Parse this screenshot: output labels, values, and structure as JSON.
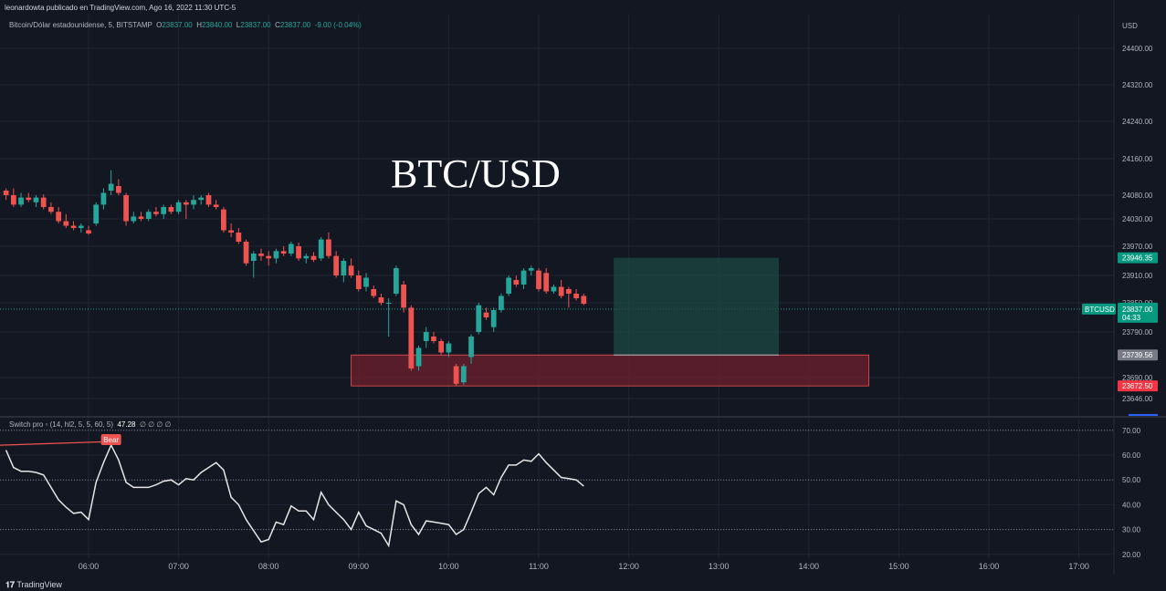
{
  "header": {
    "published_text": "leonardowta publicado en TradingView.com, Ago 16, 2022 11:30 UTC-5"
  },
  "legend": {
    "symbol": "Bitcoin/Dólar estadounidense, 5, BITSTAMP",
    "open_label": "O",
    "open": "23837.00",
    "high_label": "H",
    "high": "23840.00",
    "low_label": "L",
    "low": "23837.00",
    "close_label": "C",
    "close": "23837.00",
    "change": "-9.00 (-0.04%)"
  },
  "overlay_title": "BTC/USD",
  "currency_label": "USD",
  "oscillator": {
    "legend": "Switch pro ▫ (14, hl2, 5, 5, 60, 5)",
    "value": "47.28",
    "extras": "∅ ∅ ∅ ∅",
    "signal_label": "Bear"
  },
  "price_tags": {
    "symbol_tag": "BTCUSD",
    "last_price": "23837.00",
    "countdown": "04:33",
    "target": "23946.35",
    "entry": "23739.56",
    "stop": "23672.50"
  },
  "footer": {
    "brand": "TradingView"
  },
  "colors": {
    "background": "#131722",
    "up": "#26a69a",
    "down": "#ef5350",
    "target_zone": "#1c4a43",
    "stop_zone": "#6a1f2e",
    "oscillator_line": "#e6e6e6"
  },
  "chart_data": [
    {
      "type": "candlestick",
      "title": "Bitcoin/Dólar estadounidense, 5, BITSTAMP",
      "ylabel": "USD",
      "ylim": [
        23620,
        24440
      ],
      "yticks": [
        24400,
        24320,
        24240,
        24160,
        24080,
        24030,
        23970,
        23910,
        23850,
        23790,
        23690,
        23646
      ],
      "xticks": [
        "06:00",
        "07:00",
        "08:00",
        "09:00",
        "10:00",
        "11:00",
        "12:00",
        "13:00",
        "14:00",
        "15:00",
        "16:00",
        "17:00"
      ],
      "x_start_minutes": 300,
      "x_end_minutes": 1050,
      "candle_minutes": 5,
      "first_candle_minutes": 305,
      "candles": [
        {
          "o": 24090,
          "h": 24095,
          "l": 24070,
          "c": 24080
        },
        {
          "o": 24080,
          "h": 24095,
          "l": 24055,
          "c": 24060
        },
        {
          "o": 24060,
          "h": 24085,
          "l": 24055,
          "c": 24075
        },
        {
          "o": 24075,
          "h": 24085,
          "l": 24065,
          "c": 24070
        },
        {
          "o": 24065,
          "h": 24080,
          "l": 24055,
          "c": 24075
        },
        {
          "o": 24075,
          "h": 24082,
          "l": 24050,
          "c": 24055
        },
        {
          "o": 24055,
          "h": 24065,
          "l": 24040,
          "c": 24045
        },
        {
          "o": 24045,
          "h": 24055,
          "l": 24020,
          "c": 24025
        },
        {
          "o": 24025,
          "h": 24040,
          "l": 24010,
          "c": 24015
        },
        {
          "o": 24015,
          "h": 24025,
          "l": 24005,
          "c": 24010
        },
        {
          "o": 24010,
          "h": 24020,
          "l": 24000,
          "c": 24015
        },
        {
          "o": 24005,
          "h": 24015,
          "l": 23995,
          "c": 23998
        },
        {
          "o": 24020,
          "h": 24065,
          "l": 24015,
          "c": 24060
        },
        {
          "o": 24060,
          "h": 24095,
          "l": 24050,
          "c": 24085
        },
        {
          "o": 24090,
          "h": 24135,
          "l": 24080,
          "c": 24105
        },
        {
          "o": 24100,
          "h": 24115,
          "l": 24080,
          "c": 24085
        },
        {
          "o": 24080,
          "h": 24085,
          "l": 24015,
          "c": 24025
        },
        {
          "o": 24025,
          "h": 24045,
          "l": 24020,
          "c": 24035
        },
        {
          "o": 24035,
          "h": 24045,
          "l": 24025,
          "c": 24030
        },
        {
          "o": 24030,
          "h": 24050,
          "l": 24025,
          "c": 24045
        },
        {
          "o": 24045,
          "h": 24055,
          "l": 24035,
          "c": 24040
        },
        {
          "o": 24040,
          "h": 24060,
          "l": 24030,
          "c": 24055
        },
        {
          "o": 24055,
          "h": 24060,
          "l": 24040,
          "c": 24045
        },
        {
          "o": 24045,
          "h": 24070,
          "l": 24040,
          "c": 24065
        },
        {
          "o": 24065,
          "h": 24070,
          "l": 24030,
          "c": 24060
        },
        {
          "o": 24060,
          "h": 24080,
          "l": 24050,
          "c": 24070
        },
        {
          "o": 24070,
          "h": 24080,
          "l": 24060,
          "c": 24075
        },
        {
          "o": 24080,
          "h": 24085,
          "l": 24055,
          "c": 24060
        },
        {
          "o": 24060,
          "h": 24070,
          "l": 24050,
          "c": 24055
        },
        {
          "o": 24050,
          "h": 24055,
          "l": 24000,
          "c": 24005
        },
        {
          "o": 24005,
          "h": 24020,
          "l": 23990,
          "c": 24000
        },
        {
          "o": 24000,
          "h": 24010,
          "l": 23975,
          "c": 23980
        },
        {
          "o": 23980,
          "h": 23985,
          "l": 23930,
          "c": 23935
        },
        {
          "o": 23940,
          "h": 23960,
          "l": 23905,
          "c": 23955
        },
        {
          "o": 23955,
          "h": 23965,
          "l": 23940,
          "c": 23950
        },
        {
          "o": 23950,
          "h": 23960,
          "l": 23930,
          "c": 23945
        },
        {
          "o": 23945,
          "h": 23965,
          "l": 23935,
          "c": 23960
        },
        {
          "o": 23960,
          "h": 23970,
          "l": 23950,
          "c": 23955
        },
        {
          "o": 23955,
          "h": 23980,
          "l": 23950,
          "c": 23975
        },
        {
          "o": 23970,
          "h": 23978,
          "l": 23940,
          "c": 23945
        },
        {
          "o": 23945,
          "h": 23955,
          "l": 23935,
          "c": 23950
        },
        {
          "o": 23950,
          "h": 23958,
          "l": 23938,
          "c": 23942
        },
        {
          "o": 23945,
          "h": 23990,
          "l": 23940,
          "c": 23985
        },
        {
          "o": 23985,
          "h": 24000,
          "l": 23945,
          "c": 23950
        },
        {
          "o": 23950,
          "h": 23960,
          "l": 23905,
          "c": 23910
        },
        {
          "o": 23910,
          "h": 23945,
          "l": 23895,
          "c": 23940
        },
        {
          "o": 23930,
          "h": 23945,
          "l": 23905,
          "c": 23910
        },
        {
          "o": 23910,
          "h": 23920,
          "l": 23875,
          "c": 23880
        },
        {
          "o": 23885,
          "h": 23915,
          "l": 23875,
          "c": 23905
        },
        {
          "o": 23880,
          "h": 23888,
          "l": 23860,
          "c": 23865
        },
        {
          "o": 23862,
          "h": 23870,
          "l": 23845,
          "c": 23850
        },
        {
          "o": 23850,
          "h": 23860,
          "l": 23780,
          "c": 23850
        },
        {
          "o": 23870,
          "h": 23930,
          "l": 23865,
          "c": 23925
        },
        {
          "o": 23890,
          "h": 23898,
          "l": 23830,
          "c": 23840
        },
        {
          "o": 23840,
          "h": 23845,
          "l": 23705,
          "c": 23710
        },
        {
          "o": 23715,
          "h": 23760,
          "l": 23705,
          "c": 23755
        },
        {
          "o": 23770,
          "h": 23800,
          "l": 23755,
          "c": 23790
        },
        {
          "o": 23780,
          "h": 23790,
          "l": 23765,
          "c": 23770
        },
        {
          "o": 23770,
          "h": 23775,
          "l": 23740,
          "c": 23745
        },
        {
          "o": 23745,
          "h": 23770,
          "l": 23735,
          "c": 23765
        },
        {
          "o": 23715,
          "h": 23720,
          "l": 23672,
          "c": 23677
        },
        {
          "o": 23680,
          "h": 23720,
          "l": 23675,
          "c": 23715
        },
        {
          "o": 23735,
          "h": 23785,
          "l": 23720,
          "c": 23780
        },
        {
          "o": 23790,
          "h": 23850,
          "l": 23785,
          "c": 23845
        },
        {
          "o": 23830,
          "h": 23840,
          "l": 23815,
          "c": 23820
        },
        {
          "o": 23800,
          "h": 23840,
          "l": 23790,
          "c": 23835
        },
        {
          "o": 23835,
          "h": 23870,
          "l": 23830,
          "c": 23865
        },
        {
          "o": 23870,
          "h": 23910,
          "l": 23865,
          "c": 23905
        },
        {
          "o": 23900,
          "h": 23910,
          "l": 23885,
          "c": 23890
        },
        {
          "o": 23890,
          "h": 23925,
          "l": 23880,
          "c": 23920
        },
        {
          "o": 23920,
          "h": 23930,
          "l": 23910,
          "c": 23925
        },
        {
          "o": 23920,
          "h": 23925,
          "l": 23875,
          "c": 23880
        },
        {
          "o": 23915,
          "h": 23925,
          "l": 23870,
          "c": 23875
        },
        {
          "o": 23875,
          "h": 23890,
          "l": 23870,
          "c": 23885
        },
        {
          "o": 23885,
          "h": 23900,
          "l": 23860,
          "c": 23865
        },
        {
          "o": 23880,
          "h": 23885,
          "l": 23840,
          "c": 23870
        },
        {
          "o": 23870,
          "h": 23880,
          "l": 23855,
          "c": 23860
        },
        {
          "o": 23865,
          "h": 23870,
          "l": 23845,
          "c": 23848
        }
      ],
      "last_price": 23837,
      "position": {
        "start_minutes": 710,
        "end_minutes": 820,
        "stop_end_minutes": 880,
        "target": 23946.35,
        "entry": 23739.56,
        "stop": 23672.5
      }
    },
    {
      "type": "line",
      "title": "Switch pro",
      "ylim": [
        15,
        75
      ],
      "yticks": [
        70,
        60,
        50,
        40,
        30,
        20
      ],
      "levels": [
        70,
        50,
        30
      ],
      "series": [
        {
          "values": [
            62,
            55,
            53.5,
            53.5,
            53,
            52,
            47,
            42,
            39,
            36.5,
            37,
            34,
            49,
            57,
            64,
            58,
            49,
            47,
            47,
            47,
            48,
            49.5,
            50,
            48,
            50.5,
            50,
            53,
            55,
            57,
            54,
            43,
            40,
            34,
            29.5,
            25,
            26,
            33,
            32,
            39.5,
            37.5,
            37.5,
            34,
            45,
            40,
            37,
            34,
            30,
            37,
            31.5,
            30,
            28.5,
            23.5,
            41.5,
            40,
            32,
            28,
            33.5,
            33,
            32.5,
            32,
            28,
            30,
            37,
            44.5,
            47,
            44,
            51,
            56,
            56,
            58,
            57.5,
            60.5,
            57,
            54,
            51,
            50.5,
            50,
            47.5
          ]
        }
      ],
      "annotation": {
        "label": "Bear",
        "x_index": 14
      }
    }
  ]
}
